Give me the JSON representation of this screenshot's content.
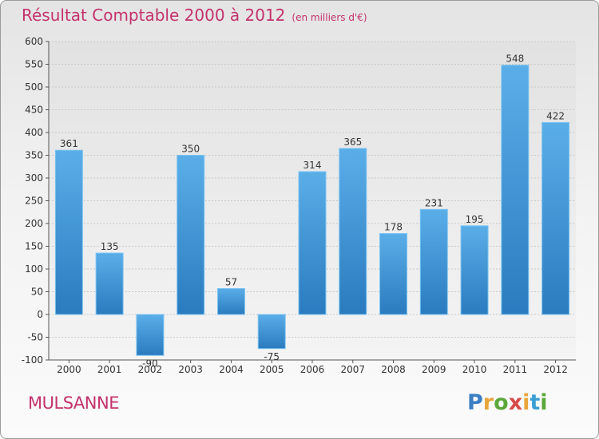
{
  "chart_data": {
    "type": "bar",
    "title": "Résultat Comptable 2000 à 2012",
    "subtitle": "(en milliers d'€)",
    "categories": [
      "2000",
      "2001",
      "2002",
      "2003",
      "2004",
      "2005",
      "2006",
      "2007",
      "2008",
      "2009",
      "2010",
      "2011",
      "2012"
    ],
    "values": [
      361,
      135,
      -90,
      350,
      57,
      -75,
      314,
      365,
      178,
      231,
      195,
      548,
      422
    ],
    "ylim": [
      -100,
      600
    ],
    "yticks": [
      -100,
      -50,
      0,
      50,
      100,
      150,
      200,
      250,
      300,
      350,
      400,
      450,
      500,
      550,
      600
    ],
    "xlabel": "",
    "ylabel": "",
    "grid": true,
    "bar_color": "#4a9fe0",
    "bar_color_dark": "#2b7fc4"
  },
  "commune": "MULSANNE",
  "logo": {
    "letters": [
      "P",
      "r",
      "o",
      "x",
      "i",
      "t",
      "i"
    ],
    "colors": [
      "#3b7fc4",
      "#e8a53a",
      "#5aa83a",
      "#d84b4b",
      "#e8a53a",
      "#3b9fd4",
      "#5aa83a"
    ]
  },
  "title_color": "#c4326c"
}
